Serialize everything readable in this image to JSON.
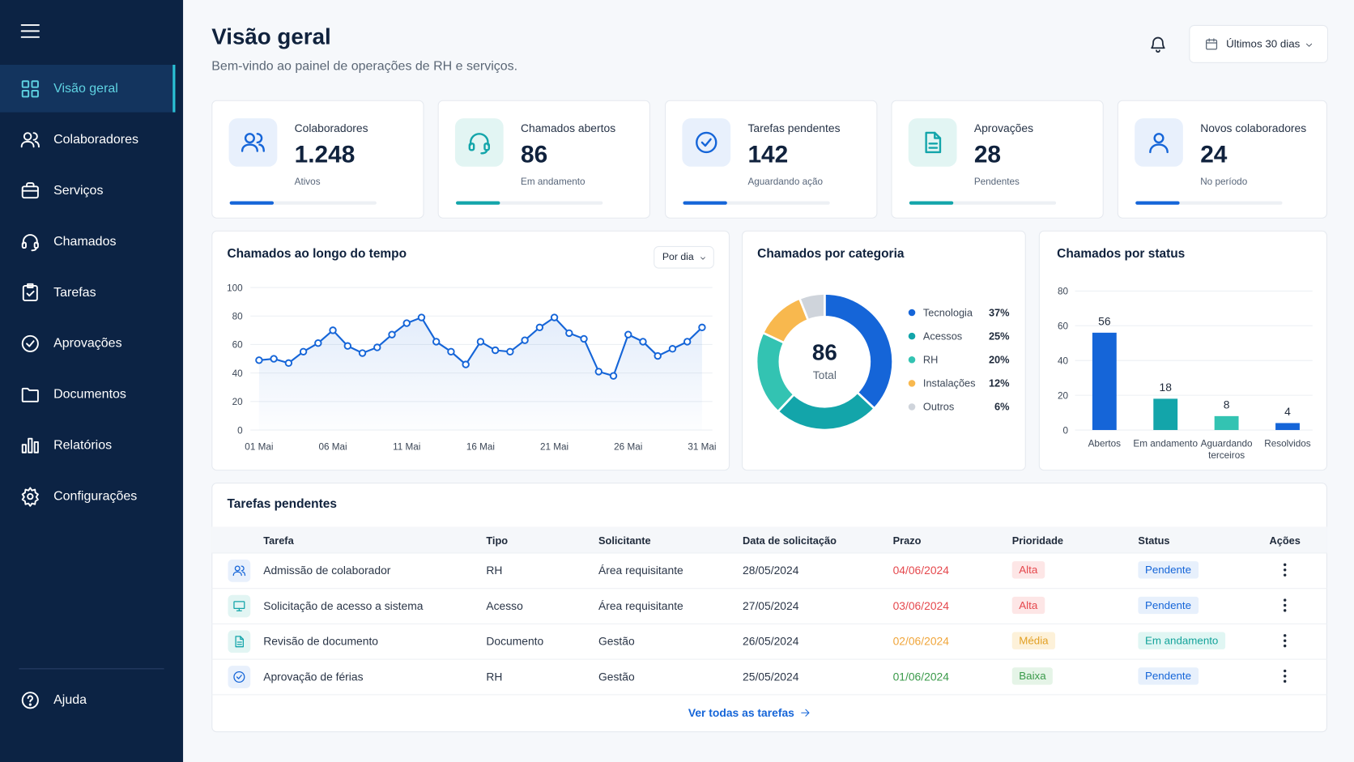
{
  "sidebar": {
    "nav": [
      "Visão geral",
      "Colaboradores",
      "Serviços",
      "Chamados",
      "Tarefas",
      "Aprovações",
      "Documentos",
      "Relatórios",
      "Configurações"
    ],
    "help": "Ajuda"
  },
  "header": {
    "title": "Visão geral",
    "subtitle": "Bem-vindo ao painel de operações de RH e serviços.",
    "date_range": "Últimos 30 dias"
  },
  "kpis": [
    {
      "label": "Colaboradores",
      "value": "1.248",
      "note": "Ativos"
    },
    {
      "label": "Chamados abertos",
      "value": 86,
      "note": "Em andamento"
    },
    {
      "label": "Tarefas pendentes",
      "value": 142,
      "note": "Aguardando ação"
    },
    {
      "label": "Aprovações",
      "value": 28,
      "note": "Pendentes"
    },
    {
      "label": "Novos colaboradores",
      "value": 24,
      "note": "No período"
    }
  ],
  "line_chart": {
    "type": "line",
    "title": "Chamados ao longo do tempo",
    "filter": "Por dia",
    "categories": [
      "01 Mai",
      null,
      null,
      null,
      null,
      "06 Mai",
      null,
      null,
      null,
      null,
      "11 Mai",
      null,
      null,
      null,
      null,
      "16 Mai",
      null,
      null,
      null,
      null,
      "21 Mai",
      null,
      null,
      null,
      null,
      "26 Mai",
      null,
      null,
      null,
      null,
      "31 Mai"
    ],
    "values": [
      49,
      50,
      47,
      55,
      61,
      70,
      59,
      54,
      58,
      67,
      75,
      79,
      62,
      55,
      46,
      62,
      56,
      55,
      63,
      72,
      79,
      68,
      64,
      41,
      38,
      67,
      62,
      52,
      57,
      62,
      72
    ],
    "color": "#1565d8",
    "ylim": [
      0,
      100
    ],
    "yticks": [
      0,
      20,
      40,
      60,
      80,
      100
    ],
    "grid": true
  },
  "donut_chart": {
    "type": "pie",
    "title": "Chamados por categoria",
    "categories": [
      "Tecnologia",
      "Acessos",
      "RH",
      "Instalações",
      "Outros"
    ],
    "values": [
      37,
      25,
      20,
      12,
      6
    ],
    "value_labels": [
      "37%",
      "25%",
      "20%",
      "12%",
      "6%"
    ],
    "colors": [
      "#1565d8",
      "#13a5aa",
      "#33c3b2",
      "#f8b84e",
      "#cfd4db"
    ],
    "center_value": 86,
    "center_label": "Total"
  },
  "bar_chart": {
    "type": "bar",
    "title": "Chamados por status",
    "categories": [
      "Abertos",
      "Em andamento",
      "Aguardando terceiros",
      "Resolvidos"
    ],
    "values": [
      56,
      18,
      8,
      4
    ],
    "colors": [
      "#1565d8",
      "#13a5aa",
      "#33c3b2",
      "#1565d8"
    ],
    "ylim": [
      0,
      80
    ],
    "yticks": [
      0,
      20,
      40,
      60,
      80
    ],
    "grid": true
  },
  "table": {
    "title": "Tarefas pendentes",
    "columns": [
      "Tarefa",
      "Tipo",
      "Solicitante",
      "Data de solicitação",
      "Prazo",
      "Prioridade",
      "Status",
      "Ações"
    ],
    "rows": [
      [
        "Admissão de colaborador",
        "RH",
        "Área requisitante",
        "28/05/2024",
        "04/06/2024",
        "Alta",
        "Pendente"
      ],
      [
        "Solicitação de acesso a sistema",
        "Acesso",
        "Área requisitante",
        "27/05/2024",
        "03/06/2024",
        "Alta",
        "Pendente"
      ],
      [
        "Revisão de documento",
        "Documento",
        "Gestão",
        "26/05/2024",
        "02/06/2024",
        "Média",
        "Em andamento"
      ],
      [
        "Aprovação de férias",
        "RH",
        "Gestão",
        "25/05/2024",
        "01/06/2024",
        "Baixa",
        "Pendente"
      ]
    ],
    "link": "Ver todas as tarefas"
  }
}
